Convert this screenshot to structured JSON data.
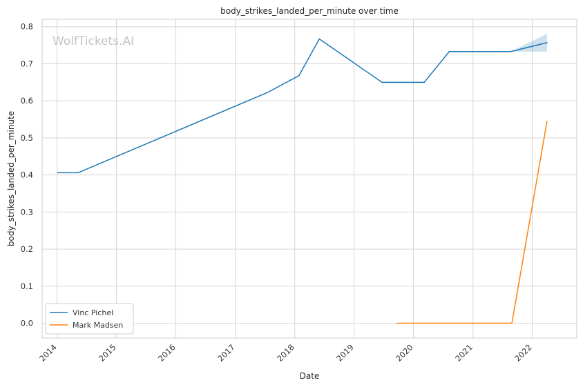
{
  "chart_data": {
    "type": "line",
    "title": "body_strikes_landed_per_minute over time",
    "xlabel": "Date",
    "ylabel": "body_strikes_landed_per_minute",
    "watermark": "WolfTickets.AI",
    "x_ticks": [
      "2014",
      "2015",
      "2016",
      "2017",
      "2018",
      "2019",
      "2020",
      "2021",
      "2022"
    ],
    "y_ticks": [
      "0.0",
      "0.1",
      "0.2",
      "0.3",
      "0.4",
      "0.5",
      "0.6",
      "0.7",
      "0.8"
    ],
    "xlim": [
      "2013-10-01",
      "2022-10-01"
    ],
    "ylim": [
      -0.04,
      0.82
    ],
    "grid": true,
    "legend_position": "lower-left",
    "series": [
      {
        "name": "Vinc Pichel",
        "color": "#1f77b4",
        "points": [
          {
            "x": "2014-01-04",
            "y": 0.406
          },
          {
            "x": "2014-05-10",
            "y": 0.406
          },
          {
            "x": "2017-07-15",
            "y": 0.622
          },
          {
            "x": "2018-01-27",
            "y": 0.668
          },
          {
            "x": "2018-06-01",
            "y": 0.767
          },
          {
            "x": "2019-06-22",
            "y": 0.65
          },
          {
            "x": "2020-03-07",
            "y": 0.65
          },
          {
            "x": "2020-08-08",
            "y": 0.733
          },
          {
            "x": "2021-08-21",
            "y": 0.733
          },
          {
            "x": "2022-04-01",
            "y": 0.757
          }
        ],
        "band": [
          {
            "x": "2021-08-21",
            "lower": 0.733,
            "upper": 0.733
          },
          {
            "x": "2022-04-01",
            "lower": 0.733,
            "upper": 0.781
          }
        ]
      },
      {
        "name": "Mark Madsen",
        "color": "#ff7f0e",
        "points": [
          {
            "x": "2019-09-21",
            "y": 0.0
          },
          {
            "x": "2021-08-28",
            "y": 0.0
          },
          {
            "x": "2022-04-01",
            "y": 0.545
          }
        ]
      }
    ]
  }
}
